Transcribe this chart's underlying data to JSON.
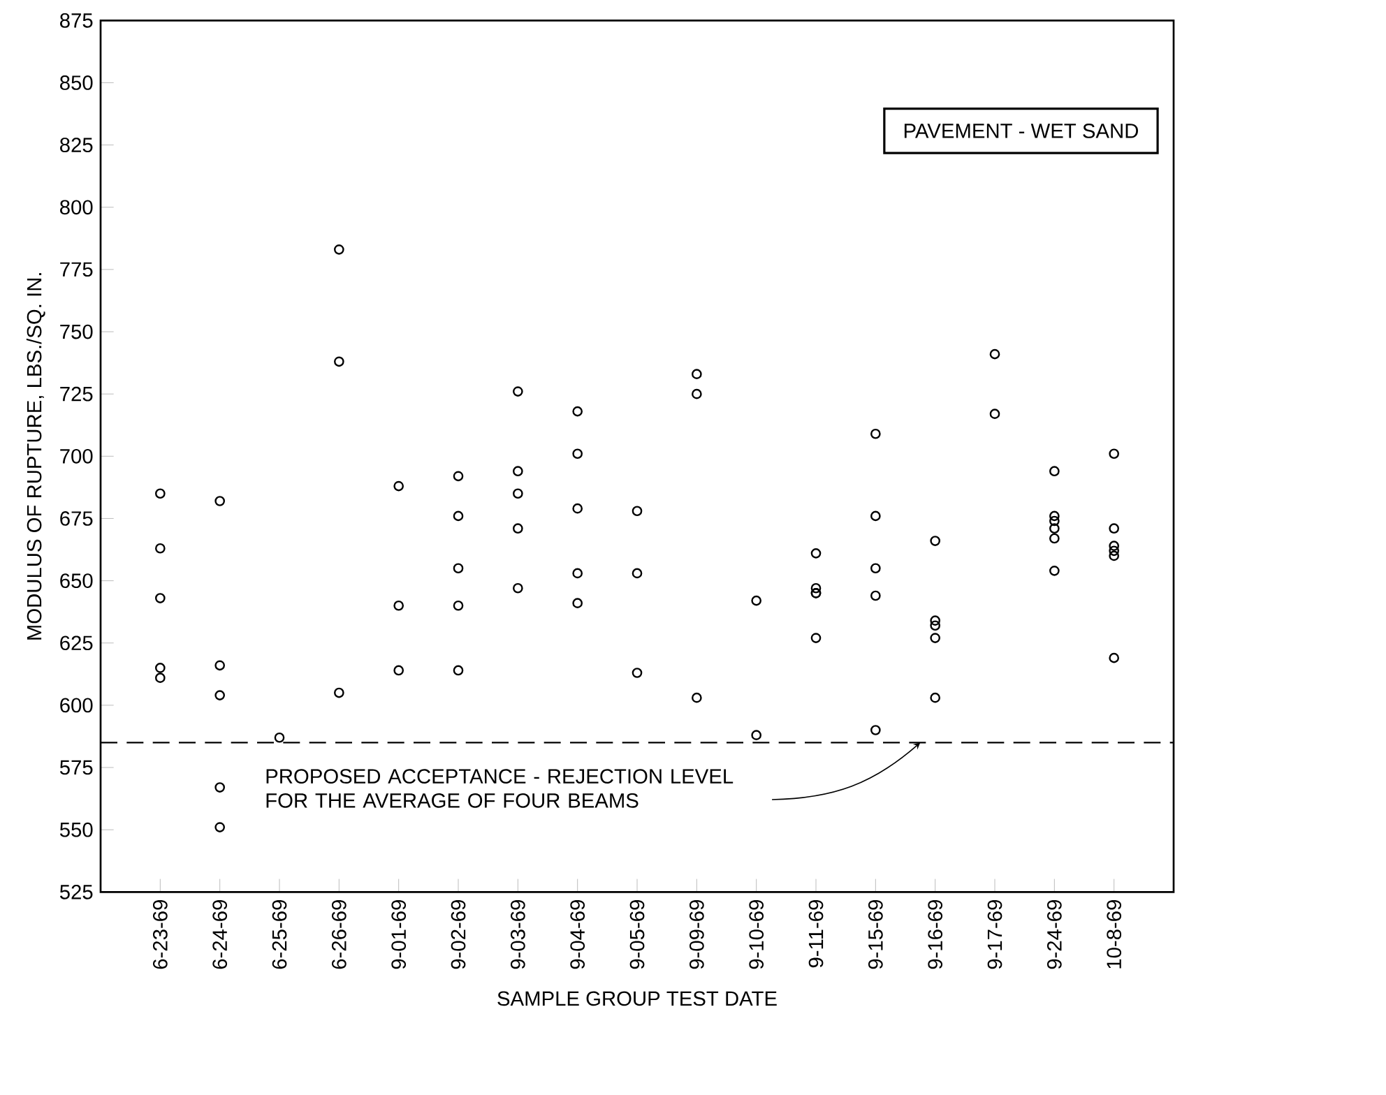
{
  "chart_data": {
    "type": "scatter",
    "xlabel": "SAMPLE GROUP TEST DATE",
    "ylabel": "MODULUS OF RUPTURE, LBS./SQ. IN.",
    "annotations": [
      "PAVEMENT - WET SAND"
    ],
    "categories": [
      "6-23-69",
      "6-24-69",
      "6-25-69",
      "6-26-69",
      "9-01-69",
      "9-02-69",
      "9-03-69",
      "9-04-69",
      "9-05-69",
      "9-09-69",
      "9-10-69",
      "9-11-69",
      "9-15-69",
      "9-16-69",
      "9-17-69",
      "9-24-69",
      "10-8-69"
    ],
    "series": [
      {
        "color": "#000000",
        "values": [
          685,
          682,
          587,
          783,
          688,
          692,
          726,
          718,
          678,
          733,
          642,
          661,
          709,
          666,
          741,
          694,
          701
        ]
      },
      {
        "color": "#000000",
        "values": [
          663,
          616,
          null,
          738,
          640,
          676,
          694,
          701,
          653,
          725,
          588,
          647,
          676,
          634,
          717,
          676,
          671
        ]
      },
      {
        "color": "#000000",
        "values": [
          643,
          604,
          null,
          605,
          614,
          655,
          685,
          679,
          613,
          603,
          null,
          645,
          655,
          632,
          null,
          674,
          664
        ]
      },
      {
        "color": "#000000",
        "values": [
          615,
          567,
          null,
          null,
          null,
          640,
          671,
          653,
          null,
          null,
          null,
          645,
          644,
          627,
          null,
          671,
          662
        ]
      },
      {
        "color": "#000000",
        "values": [
          611,
          551,
          null,
          null,
          null,
          614,
          647,
          641,
          null,
          null,
          null,
          627,
          590,
          603,
          null,
          667,
          660
        ]
      },
      {
        "color": "#000000",
        "values": [
          null,
          null,
          null,
          null,
          null,
          null,
          null,
          null,
          null,
          null,
          null,
          null,
          null,
          null,
          null,
          654,
          619
        ]
      }
    ],
    "marker": "circle",
    "ylim": [
      525,
      875
    ],
    "yticks": [
      525,
      550,
      575,
      600,
      625,
      650,
      675,
      700,
      725,
      750,
      775,
      800,
      825,
      850,
      875
    ],
    "ref_lines": [
      {
        "axis": "y",
        "value": 585,
        "label": "PROPOSED ACCEPTANCE - REJECTION LEVEL FOR THE AVERAGE OF FOUR BEAMS",
        "line_style": "dashed"
      }
    ]
  }
}
